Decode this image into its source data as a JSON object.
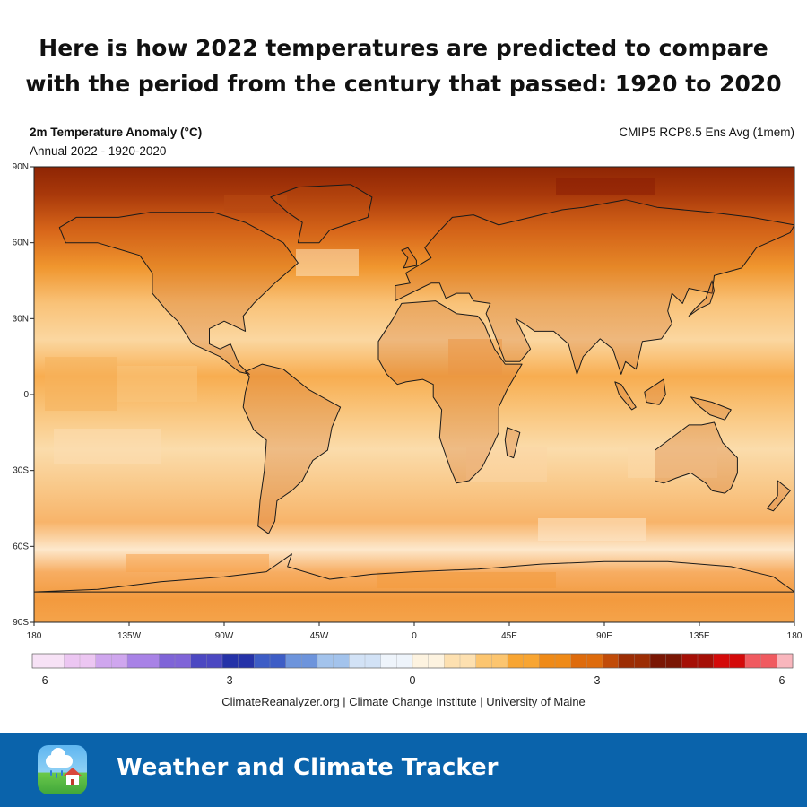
{
  "headline": {
    "line1": "Here is how 2022 temperatures are predicted to compare",
    "line2": "with the period from the century that passed: 1920 to 2020"
  },
  "map": {
    "title": "2m Temperature Anomaly (°C)",
    "subtitle": "Annual 2022 - 1920-2020",
    "model": "CMIP5 RCP8.5 Ens Avg (1mem)",
    "lat_ticks": [
      "90N",
      "60N",
      "30N",
      "0",
      "30S",
      "60S",
      "90S"
    ],
    "lon_ticks": [
      "180",
      "135W",
      "90W",
      "45W",
      "0",
      "45E",
      "90E",
      "135E",
      "180"
    ]
  },
  "colorbar": {
    "labels": [
      "-6",
      "-3",
      "0",
      "3",
      "6"
    ],
    "values": [
      -6,
      -3,
      0,
      3,
      6
    ],
    "range": [
      -6,
      6
    ],
    "cold_colors": [
      "#f7e2f6",
      "#ecc6f2",
      "#cfa6ee",
      "#a882e6",
      "#7f64d8",
      "#4c48c2",
      "#2532a8",
      "#3d5dc6",
      "#6d94dc",
      "#a3c3ec",
      "#d2e2f6",
      "#eef4fb"
    ],
    "warm_colors": [
      "#fdf3e0",
      "#fde0b0",
      "#fcc56f",
      "#f8a532",
      "#ef8a17",
      "#de6b0c",
      "#c14b08",
      "#9c2d04",
      "#7a1604",
      "#a50f06",
      "#d40a0a",
      "#f05a60",
      "#f9b6bd"
    ]
  },
  "credit": "ClimateReanalyzer.org | Climate Change Institute | University of Maine",
  "footer": {
    "title": "Weather and Climate Tracker",
    "icon": "weather-app-icon"
  }
}
